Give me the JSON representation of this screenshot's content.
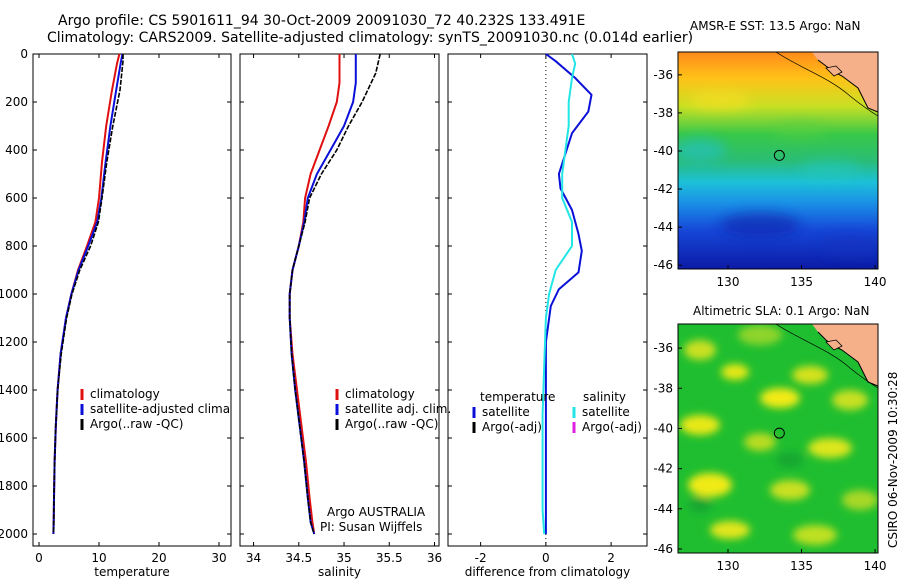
{
  "header": {
    "line1": "Argo profile: CS 5901611_94 30-Oct-2009 20091030_72 40.232S 133.491E",
    "line2": "Climatology: CARS2009. Satellite-adjusted climatology: synTS_20091030.nc (0.014d earlier)"
  },
  "stamp": "CSIRO 06-Nov-2009 10:30:28",
  "colors": {
    "climatology": "#e01010",
    "satellite": "#0a10d8",
    "argo": "#000000",
    "satellite_salinity": "#22e5e5",
    "argo_adj_salinity": "#e020e0"
  },
  "chart_data": [
    {
      "id": "temperature",
      "type": "line",
      "xlabel": "temperature",
      "ylabel": "",
      "xlim": [
        -1,
        32
      ],
      "ylim": [
        2050,
        0
      ],
      "grid": false,
      "xticks": [
        0,
        10,
        20,
        30
      ],
      "yticks": [
        0,
        200,
        400,
        600,
        800,
        1000,
        1200,
        1400,
        1600,
        1800,
        2000
      ],
      "series": [
        {
          "name": "climatology",
          "x": [
            13.4,
            13.0,
            12.1,
            11.2,
            10.5,
            10.0,
            9.4,
            8.0,
            6.5,
            5.4,
            4.5,
            3.6,
            3.1,
            2.8,
            2.6,
            2.5,
            2.45,
            2.4
          ],
          "y": [
            0,
            40,
            160,
            300,
            450,
            600,
            700,
            800,
            900,
            1000,
            1100,
            1250,
            1400,
            1550,
            1700,
            1850,
            1950,
            2000
          ]
        },
        {
          "name": "satellite-adjusted climatology",
          "x": [
            13.9,
            13.6,
            12.8,
            11.9,
            11.1,
            10.4,
            9.7,
            8.2,
            6.6,
            5.4,
            4.5,
            3.6,
            3.1,
            2.8,
            2.6,
            2.5,
            2.45,
            2.4
          ],
          "y": [
            0,
            40,
            160,
            300,
            450,
            600,
            700,
            800,
            900,
            1000,
            1100,
            1250,
            1400,
            1550,
            1700,
            1850,
            1950,
            2000
          ]
        },
        {
          "name": "Argo(..raw -QC)",
          "x": [
            14.0,
            14.0,
            13.5,
            12.3,
            11.3,
            10.5,
            9.9,
            8.6,
            6.8,
            5.5,
            4.6,
            3.7,
            3.1,
            2.8,
            2.6,
            2.5,
            2.45,
            2.4
          ],
          "y": [
            0,
            30,
            150,
            300,
            450,
            600,
            700,
            800,
            900,
            1000,
            1100,
            1250,
            1400,
            1550,
            1700,
            1850,
            1950,
            2000
          ]
        }
      ]
    },
    {
      "id": "salinity",
      "type": "line",
      "xlabel": "salinity",
      "ylabel": "",
      "xlim": [
        33.85,
        36.05
      ],
      "ylim": [
        2050,
        0
      ],
      "grid": false,
      "xticks": [
        34,
        34.5,
        35,
        35.5,
        36
      ],
      "series": [
        {
          "name": "climatology",
          "x": [
            34.95,
            34.95,
            34.92,
            34.83,
            34.73,
            34.63,
            34.57,
            34.55,
            34.5,
            34.43,
            34.4,
            34.4,
            34.43,
            34.48,
            34.53,
            34.58,
            34.62,
            34.65,
            34.67
          ],
          "y": [
            0,
            120,
            200,
            300,
            400,
            500,
            600,
            700,
            800,
            900,
            1000,
            1100,
            1250,
            1400,
            1550,
            1700,
            1850,
            1950,
            2000
          ]
        },
        {
          "name": "satellite adj. clim.",
          "x": [
            35.13,
            35.13,
            35.1,
            35.0,
            34.85,
            34.7,
            34.6,
            34.56,
            34.5,
            34.43,
            34.4,
            34.4,
            34.42,
            34.46,
            34.51,
            34.56,
            34.6,
            34.63,
            34.67
          ],
          "y": [
            0,
            120,
            200,
            300,
            400,
            500,
            600,
            700,
            800,
            900,
            1000,
            1100,
            1250,
            1400,
            1550,
            1700,
            1850,
            1950,
            2000
          ]
        },
        {
          "name": "Argo(..raw -QC)",
          "x": [
            35.4,
            35.35,
            35.2,
            35.05,
            34.92,
            34.75,
            34.62,
            34.57,
            34.5,
            34.43,
            34.4,
            34.4,
            34.42,
            34.46,
            34.51,
            34.56,
            34.6,
            34.63,
            34.67
          ],
          "y": [
            0,
            80,
            200,
            300,
            400,
            500,
            600,
            700,
            800,
            900,
            1000,
            1100,
            1250,
            1400,
            1550,
            1700,
            1850,
            1950,
            2000
          ]
        }
      ],
      "annotation": [
        "Argo AUSTRALIA",
        "PI: Susan Wijffels"
      ]
    },
    {
      "id": "difference",
      "type": "line",
      "xlabel": "difference from climatology",
      "ylabel": "",
      "xlim": [
        -3,
        3.1
      ],
      "ylim": [
        2050,
        0
      ],
      "grid": false,
      "xticks": [
        -2,
        0,
        2
      ],
      "series": [
        {
          "name": "temperature satellite",
          "x": [
            0,
            0.3,
            0.9,
            1.4,
            1.3,
            0.8,
            0.4,
            0.45,
            0.8,
            1.0,
            1.1,
            1.0,
            0.4,
            0.15,
            0,
            0,
            0,
            0
          ],
          "y": [
            0,
            30,
            100,
            170,
            240,
            330,
            500,
            560,
            650,
            750,
            820,
            910,
            980,
            1050,
            1200,
            1500,
            1800,
            2000
          ]
        },
        {
          "name": "salinity satellite",
          "x": [
            0.8,
            0.9,
            0.8,
            0.7,
            0.7,
            0.6,
            0.5,
            0.5,
            0.8,
            0.8,
            0.3,
            0.1,
            0,
            -0.05,
            -0.1,
            -0.1,
            -0.1,
            -0.05
          ],
          "y": [
            0,
            40,
            100,
            200,
            300,
            400,
            500,
            600,
            700,
            800,
            900,
            1000,
            1100,
            1300,
            1500,
            1700,
            1900,
            2000
          ]
        }
      ],
      "legend": {
        "temperature_header": "temperature",
        "salinity_header": "salinity",
        "entries": [
          {
            "label": "satellite",
            "color": "#0a10d8",
            "col": 0
          },
          {
            "label": "Argo(-adj)",
            "color": "#000000",
            "col": 0
          },
          {
            "label": "satellite",
            "color": "#22e5e5",
            "col": 1
          },
          {
            "label": "Argo(-adj)",
            "color": "#e020e0",
            "col": 1
          }
        ]
      }
    },
    {
      "id": "sst_map",
      "type": "heatmap",
      "title": "AMSR-E SST: 13.5 Argo: NaN",
      "xlim": [
        126.6,
        140.2
      ],
      "ylim": [
        -46.2,
        -34.8
      ],
      "xticks": [
        130,
        135,
        140
      ],
      "yticks": [
        -36,
        -38,
        -40,
        -42,
        -44,
        -46
      ],
      "float_position": [
        133.491,
        -40.232
      ]
    },
    {
      "id": "sla_map",
      "type": "heatmap",
      "title": "Altimetric SLA: 0.1 Argo: NaN",
      "xlim": [
        126.6,
        140.2
      ],
      "ylim": [
        -46.2,
        -34.8
      ],
      "xticks": [
        130,
        135,
        140
      ],
      "yticks": [
        -36,
        -38,
        -40,
        -42,
        -44,
        -46
      ],
      "float_position": [
        133.491,
        -40.232
      ]
    }
  ],
  "legends": {
    "temperature": [
      "climatology",
      "satellite-adjusted climatology",
      "Argo(..raw -QC)"
    ],
    "salinity": [
      "climatology",
      "satellite adj. clim.",
      "Argo(..raw -QC)"
    ]
  }
}
